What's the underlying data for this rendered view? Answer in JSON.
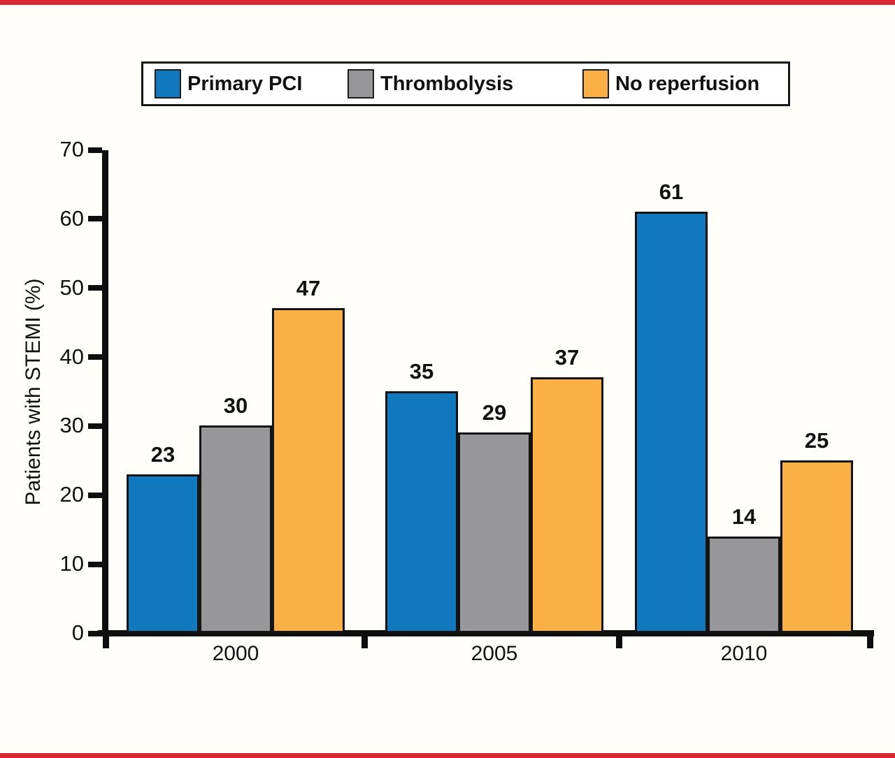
{
  "page": {
    "rule_color": "#d7282f",
    "background": "#fffefa"
  },
  "chart_data": {
    "type": "bar",
    "categories": [
      "2000",
      "2005",
      "2010"
    ],
    "series": [
      {
        "name": "Primary PCI",
        "color": "#1178be",
        "values": [
          23,
          35,
          61
        ]
      },
      {
        "name": "Thrombolysis",
        "color": "#979699",
        "values": [
          30,
          29,
          14
        ]
      },
      {
        "name": "No reperfusion",
        "color": "#fbb046",
        "values": [
          47,
          37,
          25
        ]
      }
    ],
    "title": "",
    "xlabel": "",
    "ylabel": "Patients with STEMI (%)",
    "ylim": [
      0,
      70
    ],
    "yticks": [
      0,
      10,
      20,
      30,
      40,
      50,
      60,
      70
    ],
    "grid": false,
    "legend_position": "top",
    "bar_labels": true
  }
}
